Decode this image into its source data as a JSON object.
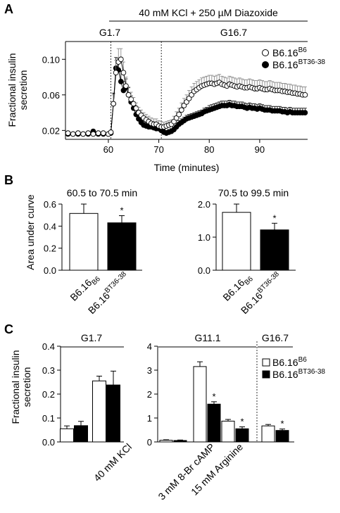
{
  "panels": {
    "A": "A",
    "B": "B",
    "C": "C"
  },
  "colors": {
    "open_fill": "#ffffff",
    "filled_fill": "#000000",
    "ink": "#000000",
    "open_err": "#808080"
  },
  "panel_a": {
    "condition_top": "40 mM KCl + 250 µM Diazoxide",
    "conditions": [
      "G1.7",
      "G16.7"
    ]
  },
  "panel_c": {
    "groups": [
      "G1.7",
      "G11.1",
      "G16.7"
    ]
  },
  "chart_data": [
    {
      "id": "A",
      "type": "line",
      "xlabel": "Time (minutes)",
      "ylabel": "Fractional insulin secretion",
      "ylabel_lines": [
        "Fractional insulin",
        "secretion"
      ],
      "xlim": [
        51.5,
        99.5
      ],
      "ylim": [
        0.01,
        0.12
      ],
      "xticks": [
        60,
        70,
        80,
        90
      ],
      "yticks": [
        0.02,
        0.06,
        0.1
      ],
      "ytick_labels": [
        "0.02",
        "0.06",
        "0.10"
      ],
      "markers": [
        60.5,
        70.5
      ],
      "legend": "top-right",
      "series": [
        {
          "name": "B6.16",
          "name_sup": "B6",
          "style": "open",
          "x": [
            52,
            53,
            54,
            55,
            56,
            57,
            58,
            59,
            60,
            60.5,
            61,
            61.5,
            62,
            62.5,
            63,
            63.5,
            64,
            64.5,
            65,
            65.5,
            66,
            66.5,
            67,
            67.5,
            68,
            68.5,
            69,
            69.5,
            70,
            70.5,
            71,
            71.5,
            72,
            72.5,
            73,
            73.5,
            74,
            74.5,
            75,
            75.5,
            76,
            76.5,
            77,
            77.5,
            78,
            78.5,
            79,
            79.5,
            80,
            80.5,
            81,
            81.5,
            82,
            82.5,
            83,
            83.5,
            84,
            84.5,
            85,
            85.5,
            86,
            86.5,
            87,
            87.5,
            88,
            88.5,
            89,
            89.5,
            90,
            90.5,
            91,
            91.5,
            92,
            92.5,
            93,
            93.5,
            94,
            94.5,
            95,
            95.5,
            96,
            96.5,
            97,
            97.5,
            98,
            98.5,
            99
          ],
          "y": [
            0.017,
            0.016,
            0.017,
            0.016,
            0.017,
            0.016,
            0.017,
            0.017,
            0.016,
            0.018,
            0.05,
            0.085,
            0.097,
            0.1,
            0.085,
            0.07,
            0.06,
            0.055,
            0.05,
            0.045,
            0.04,
            0.037,
            0.034,
            0.032,
            0.03,
            0.028,
            0.027,
            0.027,
            0.025,
            0.024,
            0.024,
            0.025,
            0.026,
            0.027,
            0.03,
            0.034,
            0.038,
            0.043,
            0.048,
            0.052,
            0.056,
            0.06,
            0.064,
            0.066,
            0.068,
            0.07,
            0.071,
            0.072,
            0.073,
            0.073,
            0.072,
            0.073,
            0.074,
            0.072,
            0.071,
            0.07,
            0.072,
            0.071,
            0.07,
            0.069,
            0.07,
            0.069,
            0.068,
            0.068,
            0.069,
            0.068,
            0.067,
            0.067,
            0.068,
            0.067,
            0.066,
            0.066,
            0.067,
            0.066,
            0.065,
            0.065,
            0.065,
            0.064,
            0.064,
            0.063,
            0.063,
            0.062,
            0.062,
            0.061,
            0.061,
            0.06,
            0.06
          ],
          "err": [
            0.002,
            0.002,
            0.002,
            0.002,
            0.002,
            0.002,
            0.002,
            0.002,
            0.002,
            0.002,
            0.01,
            0.014,
            0.015,
            0.012,
            0.012,
            0.01,
            0.009,
            0.008,
            0.007,
            0.006,
            0.006,
            0.006,
            0.006,
            0.006,
            0.006,
            0.006,
            0.006,
            0.006,
            0.006,
            0.006,
            0.005,
            0.005,
            0.005,
            0.005,
            0.006,
            0.007,
            0.007,
            0.008,
            0.008,
            0.008,
            0.009,
            0.009,
            0.009,
            0.009,
            0.009,
            0.009,
            0.009,
            0.009,
            0.009,
            0.009,
            0.009,
            0.009,
            0.009,
            0.009,
            0.009,
            0.009,
            0.009,
            0.009,
            0.009,
            0.009,
            0.009,
            0.009,
            0.009,
            0.009,
            0.009,
            0.009,
            0.009,
            0.009,
            0.009,
            0.009,
            0.009,
            0.009,
            0.009,
            0.009,
            0.009,
            0.009,
            0.009,
            0.009,
            0.009,
            0.009,
            0.009,
            0.009,
            0.009,
            0.009,
            0.009,
            0.009,
            0.009
          ]
        },
        {
          "name": "B6.16",
          "name_sup": "BT36-38",
          "style": "filled",
          "x": [
            52,
            53,
            54,
            55,
            56,
            57,
            58,
            59,
            60,
            60.5,
            61,
            61.5,
            62,
            62.5,
            63,
            63.5,
            64,
            64.5,
            65,
            65.5,
            66,
            66.5,
            67,
            67.5,
            68,
            68.5,
            69,
            69.5,
            70,
            70.5,
            71,
            71.5,
            72,
            72.5,
            73,
            73.5,
            74,
            74.5,
            75,
            75.5,
            76,
            76.5,
            77,
            77.5,
            78,
            78.5,
            79,
            79.5,
            80,
            80.5,
            81,
            81.5,
            82,
            82.5,
            83,
            83.5,
            84,
            84.5,
            85,
            85.5,
            86,
            86.5,
            87,
            87.5,
            88,
            88.5,
            89,
            89.5,
            90,
            90.5,
            91,
            91.5,
            92,
            92.5,
            93,
            93.5,
            94,
            94.5,
            95,
            95.5,
            96,
            96.5,
            97,
            97.5,
            98,
            98.5,
            99
          ],
          "y": [
            0.016,
            0.016,
            0.016,
            0.016,
            0.016,
            0.019,
            0.016,
            0.016,
            0.016,
            0.017,
            0.05,
            0.09,
            0.088,
            0.075,
            0.065,
            0.068,
            0.06,
            0.052,
            0.045,
            0.038,
            0.033,
            0.029,
            0.026,
            0.025,
            0.024,
            0.024,
            0.023,
            0.022,
            0.022,
            0.02,
            0.018,
            0.017,
            0.018,
            0.019,
            0.021,
            0.024,
            0.027,
            0.029,
            0.031,
            0.033,
            0.034,
            0.035,
            0.036,
            0.037,
            0.038,
            0.039,
            0.041,
            0.042,
            0.043,
            0.044,
            0.045,
            0.046,
            0.047,
            0.048,
            0.048,
            0.048,
            0.049,
            0.048,
            0.048,
            0.047,
            0.047,
            0.047,
            0.046,
            0.045,
            0.046,
            0.045,
            0.045,
            0.044,
            0.045,
            0.044,
            0.043,
            0.043,
            0.043,
            0.042,
            0.042,
            0.042,
            0.042,
            0.041,
            0.041,
            0.04,
            0.041,
            0.04,
            0.04,
            0.04,
            0.04,
            0.04,
            0.04
          ],
          "err": [
            0.001,
            0.001,
            0.001,
            0.001,
            0.001,
            0.002,
            0.001,
            0.001,
            0.001,
            0.001,
            0.012,
            0.012,
            0.013,
            0.012,
            0.01,
            0.01,
            0.008,
            0.007,
            0.006,
            0.005,
            0.005,
            0.005,
            0.004,
            0.004,
            0.004,
            0.004,
            0.004,
            0.004,
            0.004,
            0.004,
            0.003,
            0.003,
            0.003,
            0.003,
            0.003,
            0.004,
            0.004,
            0.004,
            0.004,
            0.004,
            0.004,
            0.004,
            0.004,
            0.004,
            0.004,
            0.004,
            0.004,
            0.004,
            0.005,
            0.005,
            0.005,
            0.005,
            0.005,
            0.005,
            0.005,
            0.005,
            0.005,
            0.005,
            0.005,
            0.005,
            0.005,
            0.005,
            0.005,
            0.005,
            0.005,
            0.005,
            0.005,
            0.005,
            0.005,
            0.005,
            0.005,
            0.005,
            0.005,
            0.005,
            0.005,
            0.005,
            0.005,
            0.005,
            0.005,
            0.005,
            0.005,
            0.005,
            0.005,
            0.005,
            0.005,
            0.005,
            0.005
          ]
        }
      ]
    },
    {
      "id": "B1",
      "type": "bar",
      "title": "60.5 to 70.5 min",
      "ylabel": "Area under curve",
      "ylim": [
        0,
        0.6
      ],
      "yticks": [
        0,
        0.2,
        0.4,
        0.6
      ],
      "ytick_labels": [
        "0.0",
        "0.2",
        "0.4",
        "0.6"
      ],
      "categories": [
        {
          "base": "B6.16",
          "sub": "B6"
        },
        {
          "base": "B6.16",
          "sub": "BT36-38"
        }
      ],
      "values": [
        0.515,
        0.43
      ],
      "errors": [
        0.085,
        0.065
      ],
      "styles": [
        "open",
        "filled"
      ],
      "stars": [
        "",
        "*"
      ]
    },
    {
      "id": "B2",
      "type": "bar",
      "title": "70.5 to 99.5 min",
      "ylim": [
        0,
        2.0
      ],
      "yticks": [
        0,
        1,
        2
      ],
      "ytick_labels": [
        "0.0",
        "1.0",
        "2.0"
      ],
      "categories": [
        {
          "base": "B6.16",
          "sub": "B6"
        },
        {
          "base": "B6.16",
          "sub": "BT36-38"
        }
      ],
      "values": [
        1.75,
        1.22
      ],
      "errors": [
        0.25,
        0.2
      ],
      "styles": [
        "open",
        "filled"
      ],
      "stars": [
        "",
        "*"
      ]
    },
    {
      "id": "C1",
      "type": "bar",
      "ylabel": "Fractional insulin secretion",
      "ylabel_lines": [
        "Fractional insulin",
        "secretion"
      ],
      "ylim": [
        0,
        0.4
      ],
      "yticks": [
        0,
        0.1,
        0.2,
        0.3,
        0.4
      ],
      "ytick_labels": [
        "0.0",
        "0.1",
        "0.2",
        "0.3",
        "0.4"
      ],
      "categories": [
        "",
        "40 mM KCl"
      ],
      "series": [
        {
          "name": "B6.16",
          "name_sup": "B6",
          "style": "open",
          "values": [
            0.055,
            0.255
          ],
          "errors": [
            0.012,
            0.02
          ]
        },
        {
          "name": "B6.16",
          "name_sup": "BT36-38",
          "style": "filled",
          "values": [
            0.068,
            0.238
          ],
          "errors": [
            0.018,
            0.058
          ]
        }
      ]
    },
    {
      "id": "C2",
      "type": "bar",
      "ylim": [
        0,
        4
      ],
      "yticks": [
        0,
        1,
        2,
        3,
        4
      ],
      "ytick_labels": [
        "0",
        "1",
        "2",
        "3",
        "4"
      ],
      "legend": "right",
      "categories": [
        "",
        "3 mM 8-Br cAMP",
        "15 mM Arginine",
        ""
      ],
      "series": [
        {
          "name": "B6.16",
          "name_sup": "B6",
          "style": "open",
          "values": [
            0.07,
            3.15,
            0.87,
            0.67
          ],
          "errors": [
            0.02,
            0.2,
            0.07,
            0.06
          ]
        },
        {
          "name": "B6.16",
          "name_sup": "BT36-38",
          "style": "filled",
          "values": [
            0.06,
            1.58,
            0.55,
            0.48
          ],
          "errors": [
            0.02,
            0.1,
            0.08,
            0.06
          ]
        }
      ],
      "stars": [
        "",
        "*",
        "*",
        "*"
      ]
    }
  ]
}
